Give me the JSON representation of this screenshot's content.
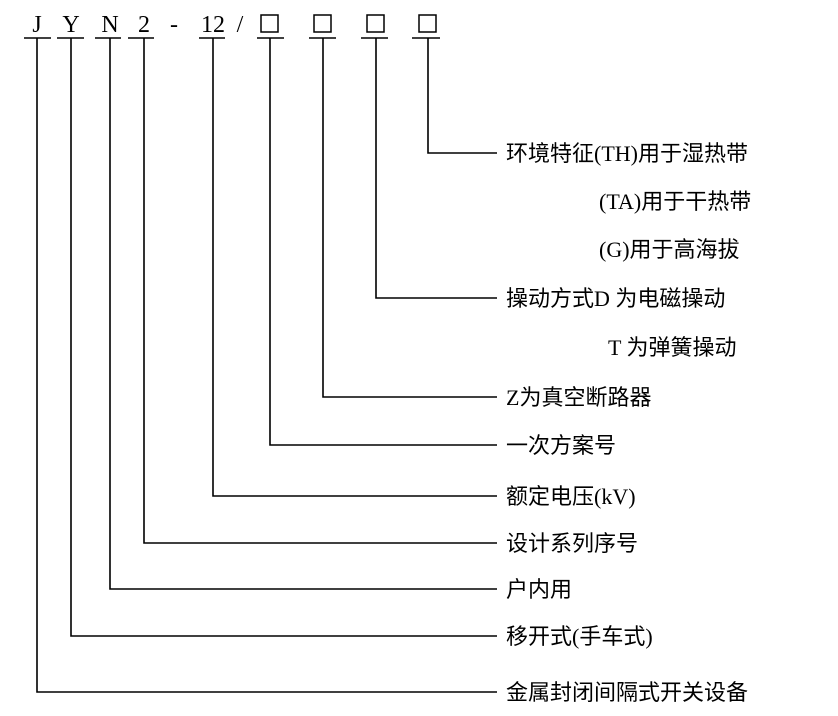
{
  "model_code": {
    "parts": [
      "J",
      "Y",
      "N",
      "2",
      "-",
      "12",
      "/"
    ],
    "placeholders": 4
  },
  "labels": [
    "环境特征(TH)用于湿热带",
    "(TA)用于干热带",
    "(G)用于高海拔",
    "操动方式D 为电磁操动",
    "T 为弹簧操动",
    "Z为真空断路器",
    "一次方案号",
    "额定电压(kV)",
    "设计系列序号",
    "户内用",
    "移开式(手车式)",
    "金属封闭间隔式开关设备"
  ]
}
